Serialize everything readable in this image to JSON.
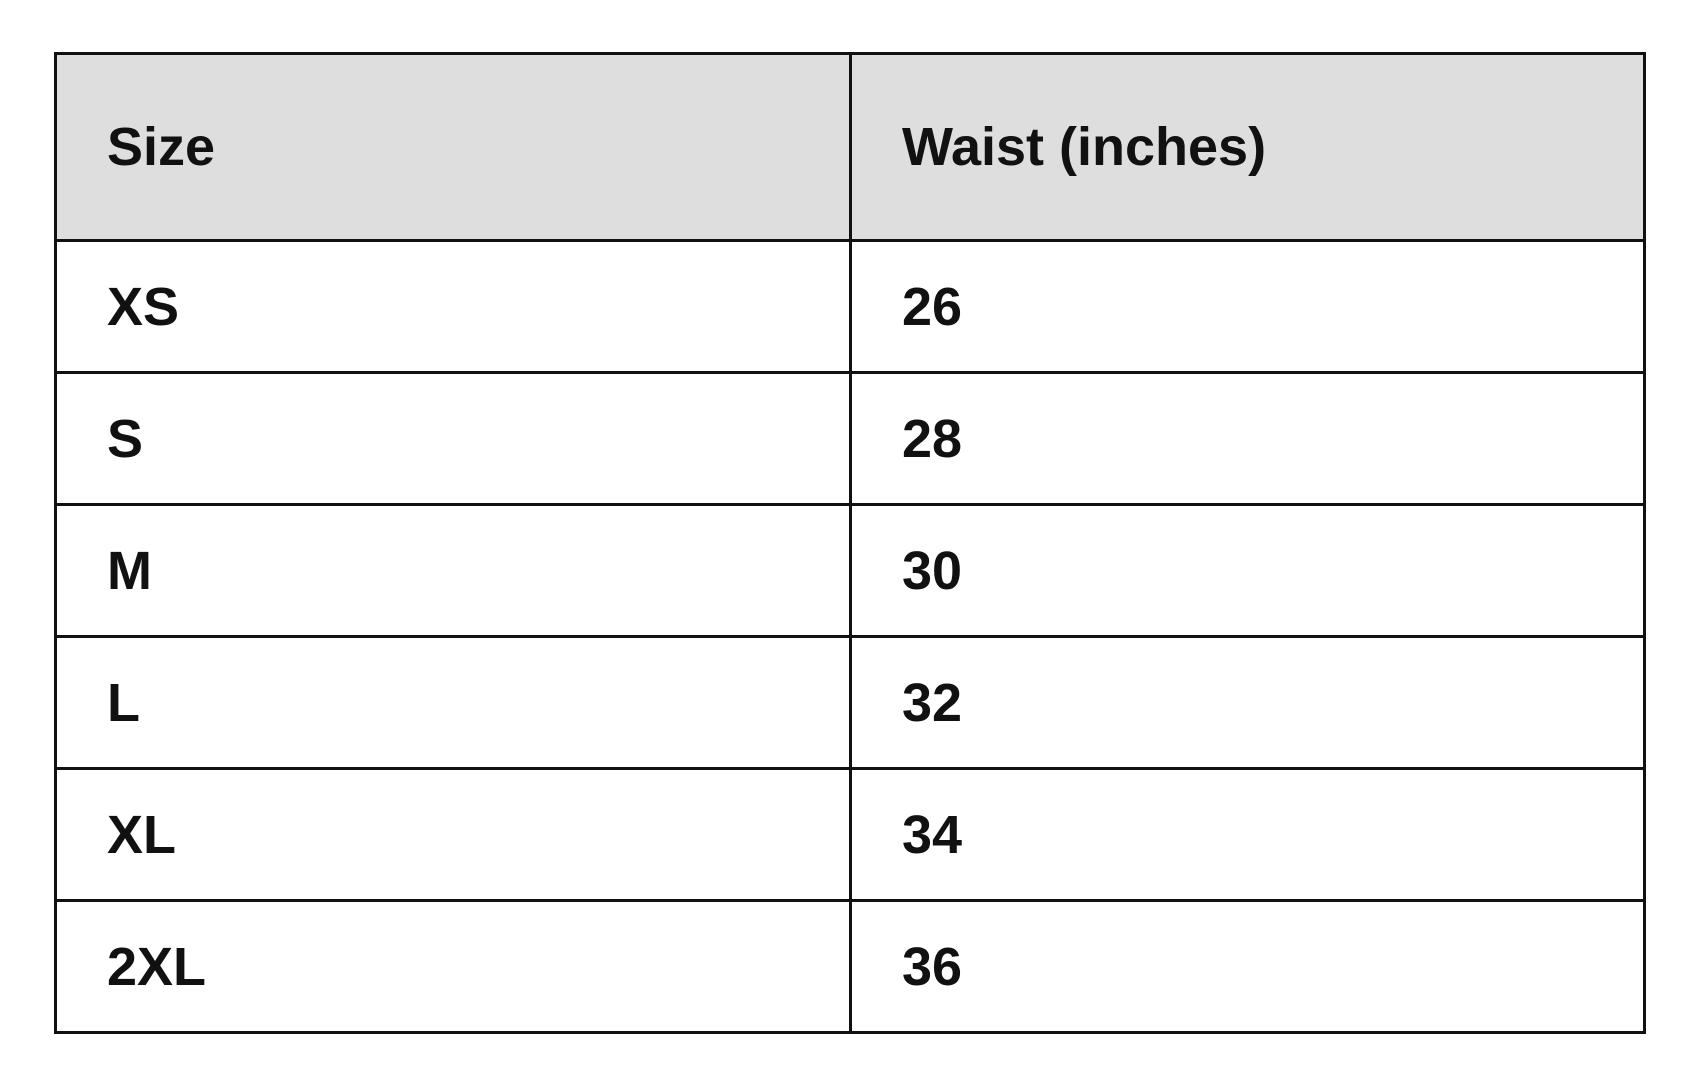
{
  "table": {
    "headers": [
      "Size",
      "Waist (inches)"
    ],
    "rows": [
      [
        "XS",
        "26"
      ],
      [
        "S",
        "28"
      ],
      [
        "M",
        "30"
      ],
      [
        "L",
        "32"
      ],
      [
        "XL",
        "34"
      ],
      [
        "2XL",
        "36"
      ]
    ]
  },
  "colors": {
    "header_bg": "#dedede",
    "border": "#111111"
  }
}
